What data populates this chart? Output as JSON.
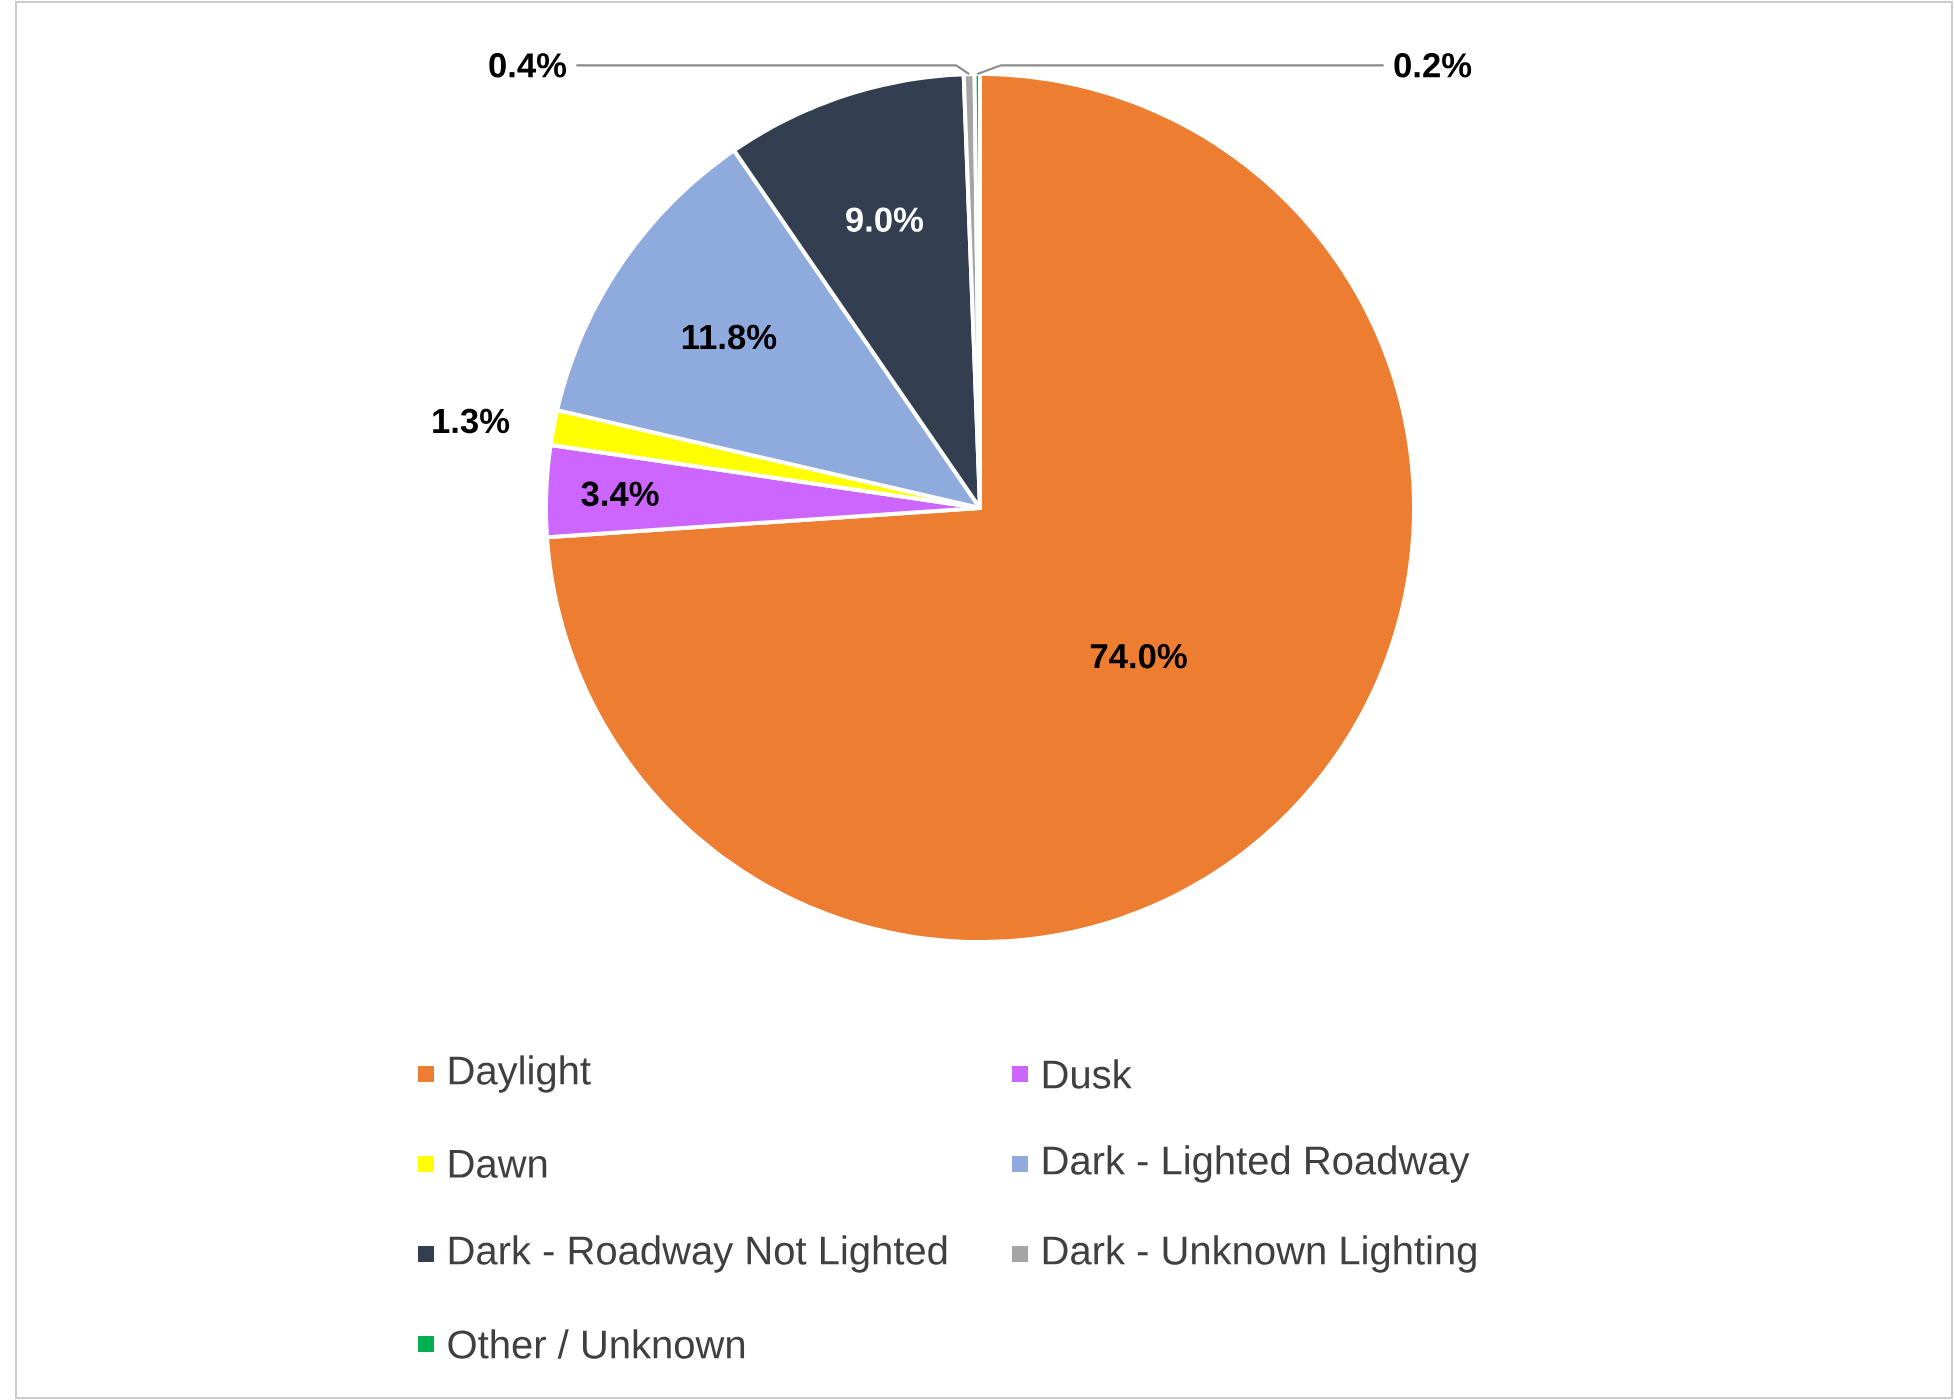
{
  "chart_data": {
    "type": "pie",
    "categories": [
      "Daylight",
      "Dusk",
      "Dawn",
      "Dark - Lighted Roadway",
      "Dark - Roadway Not Lighted",
      "Dark - Unknown Lighting",
      "Other / Unknown"
    ],
    "values": [
      74.0,
      3.4,
      1.3,
      11.8,
      9.0,
      0.4,
      0.2
    ],
    "value_labels": [
      "74.0%",
      "3.4%",
      "1.3%",
      "11.8%",
      "9.0%",
      "0.4%",
      "0.2%"
    ],
    "colors": [
      "#ed7d31",
      "#cc66ff",
      "#ffff00",
      "#8faadc",
      "#333f50",
      "#a5a5a5",
      "#00b050"
    ],
    "legend": "bottom"
  }
}
